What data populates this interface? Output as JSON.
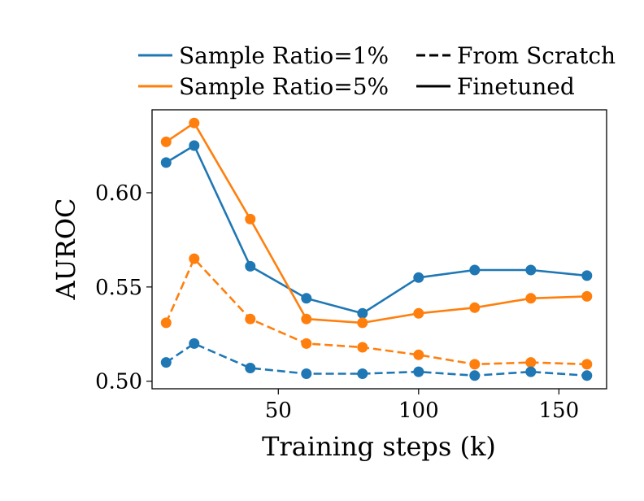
{
  "chart_data": {
    "type": "line",
    "xlabel": "Training steps (k)",
    "ylabel": "AUROC",
    "xlim": [
      5,
      167
    ],
    "ylim": [
      0.496,
      0.644
    ],
    "xticks": [
      50,
      100,
      150
    ],
    "yticks": [
      0.5,
      0.55,
      0.6
    ],
    "xtick_labels": [
      "50",
      "100",
      "150"
    ],
    "ytick_labels": [
      "0.50",
      "0.55",
      "0.60"
    ],
    "grid": false,
    "legend_placement": "top, above plot",
    "legend": {
      "color_entries": [
        {
          "label": "Sample Ratio=1%",
          "color": "#1f77b4"
        },
        {
          "label": "Sample Ratio=5%",
          "color": "#ff7f0e"
        }
      ],
      "style_entries": [
        {
          "label": "From Scratch",
          "style": "dashed"
        },
        {
          "label": "Finetuned",
          "style": "solid"
        }
      ]
    },
    "x": [
      10,
      20,
      40,
      60,
      80,
      100,
      120,
      140,
      160
    ],
    "series": [
      {
        "name": "Sample Ratio=1%",
        "style": "solid",
        "color": "#1f77b4",
        "values": [
          0.616,
          0.625,
          0.561,
          0.544,
          0.536,
          0.555,
          0.559,
          0.559,
          0.556
        ]
      },
      {
        "name": "Sample Ratio=5%",
        "style": "solid",
        "color": "#ff7f0e",
        "values": [
          0.627,
          0.637,
          0.586,
          0.533,
          0.531,
          0.536,
          0.539,
          0.544,
          0.545
        ]
      },
      {
        "name": "Sample Ratio=5%",
        "style": "dashed",
        "color": "#ff7f0e",
        "values": [
          0.531,
          0.565,
          0.533,
          0.52,
          0.518,
          0.514,
          0.509,
          0.51,
          0.509
        ]
      },
      {
        "name": "Sample Ratio=1%",
        "style": "dashed",
        "color": "#1f77b4",
        "values": [
          0.51,
          0.52,
          0.507,
          0.504,
          0.504,
          0.505,
          0.503,
          0.505,
          0.503
        ]
      }
    ]
  }
}
